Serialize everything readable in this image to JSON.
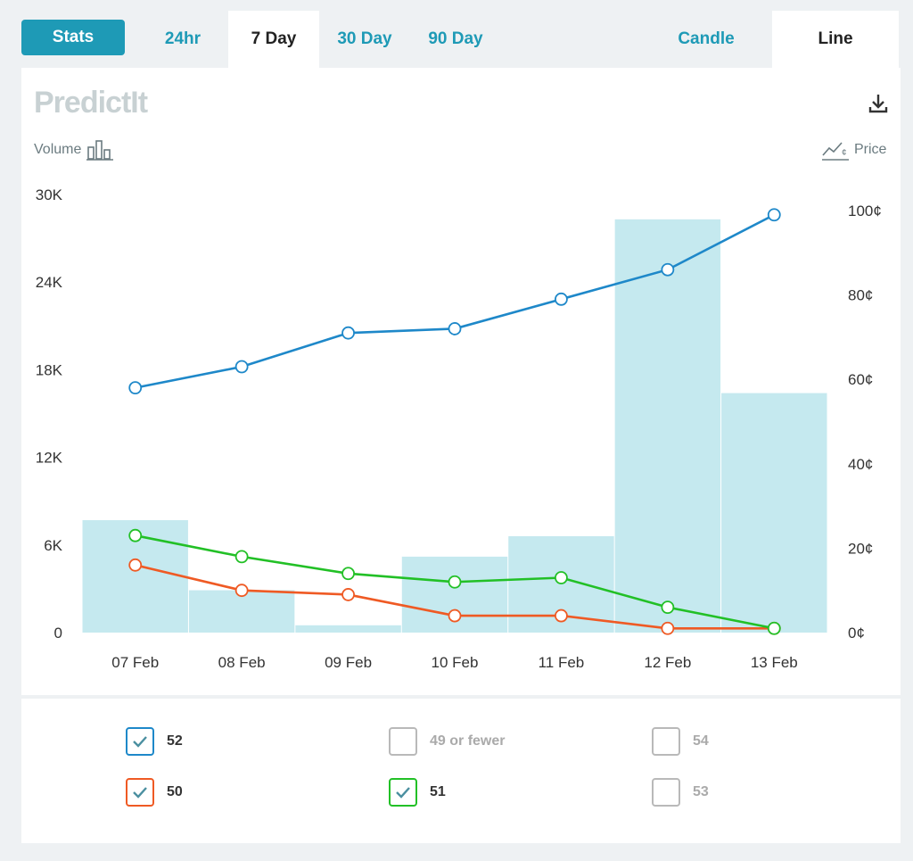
{
  "tabs": {
    "stats": "Stats",
    "periods": [
      "24hr",
      "7 Day",
      "30 Day",
      "90 Day"
    ],
    "active_period": "7 Day",
    "views": [
      "Candle",
      "Line"
    ],
    "active_view": "Line"
  },
  "logo": "PredictIt",
  "axis_captions": {
    "left": "Volume",
    "right": "Price"
  },
  "icons": {
    "volume": "bar-chart-icon",
    "price": "line-chart-icon",
    "download": "download-icon"
  },
  "chart_data": {
    "type": "bar",
    "categories": [
      "07 Feb",
      "08 Feb",
      "09 Feb",
      "10 Feb",
      "11 Feb",
      "12 Feb",
      "13 Feb"
    ],
    "volume": {
      "values": [
        7700,
        2900,
        500,
        5200,
        6600,
        28300,
        16400
      ],
      "ylim": [
        0,
        30000
      ],
      "ticks": [
        "0",
        "6K",
        "12K",
        "18K",
        "24K",
        "30K"
      ],
      "color": "#c5e9ef"
    },
    "price_axis": {
      "ylim": [
        0,
        100
      ],
      "ticks": [
        "0¢",
        "20¢",
        "40¢",
        "60¢",
        "80¢",
        "100¢"
      ]
    },
    "series": [
      {
        "name": "52",
        "type": "line",
        "color": "#1e88c9",
        "values": [
          58,
          63,
          71,
          72,
          79,
          86,
          99
        ]
      },
      {
        "name": "50",
        "type": "line",
        "color": "#ef5a24",
        "values": [
          16,
          10,
          9,
          4,
          4,
          1,
          1
        ]
      },
      {
        "name": "51",
        "type": "line",
        "color": "#22c026",
        "values": [
          23,
          18,
          14,
          12,
          13,
          6,
          1
        ]
      }
    ]
  },
  "legend": [
    {
      "label": "52",
      "checked": true,
      "color": "#1e88c9"
    },
    {
      "label": "49 or fewer",
      "checked": false,
      "color": "#b9b9b9"
    },
    {
      "label": "54",
      "checked": false,
      "color": "#b9b9b9"
    },
    {
      "label": "50",
      "checked": true,
      "color": "#ef5a24"
    },
    {
      "label": "51",
      "checked": true,
      "color": "#22c026"
    },
    {
      "label": "53",
      "checked": false,
      "color": "#b9b9b9"
    }
  ]
}
